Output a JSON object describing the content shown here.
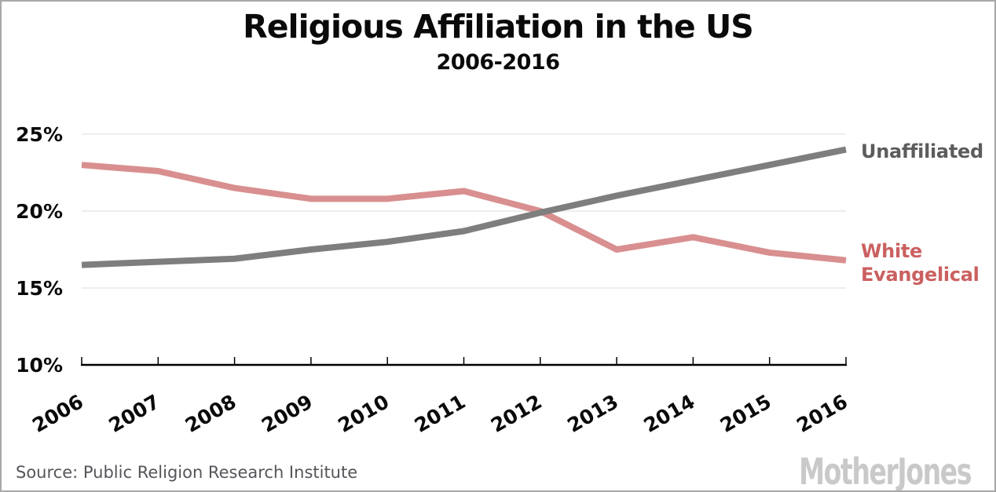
{
  "title": "Religious Affiliation in the US",
  "subtitle": "2006-2016",
  "footer": {
    "source": "Source: Public Religion Research Institute",
    "logo_text": "MotherJones"
  },
  "chart_data": {
    "type": "line",
    "title": "Religious Affiliation in the US",
    "subtitle": "2006-2016",
    "x": [
      2006,
      2007,
      2008,
      2009,
      2010,
      2011,
      2012,
      2013,
      2014,
      2015,
      2016
    ],
    "x_tick_labels": [
      "2006",
      "2007",
      "2008",
      "2009",
      "2010",
      "2011",
      "2012",
      "2013",
      "2014",
      "2015",
      "2016"
    ],
    "y_ticks": [
      {
        "value": 10,
        "label": "10%"
      },
      {
        "value": 15,
        "label": "15%"
      },
      {
        "value": 20,
        "label": "20%"
      },
      {
        "value": 25,
        "label": "25%"
      }
    ],
    "ylim": [
      10,
      26
    ],
    "grid": "horizontal",
    "legend_position": "right-end-labels",
    "gridline_color": "#dedede",
    "axis_color": "#000000",
    "series": [
      {
        "name": "Unaffiliated",
        "color": "#7e7e7e",
        "label_color": "#5c5c5c",
        "values": [
          16.5,
          16.7,
          16.9,
          17.5,
          18.0,
          18.7,
          19.9,
          21.0,
          22.0,
          23.0,
          24.0
        ]
      },
      {
        "name": "White Evangelical",
        "color": "#d98f8f",
        "label_color": "#cb6060",
        "values": [
          23.0,
          22.6,
          21.5,
          20.8,
          20.8,
          21.3,
          20.0,
          17.5,
          18.3,
          17.3,
          16.8
        ]
      }
    ]
  }
}
